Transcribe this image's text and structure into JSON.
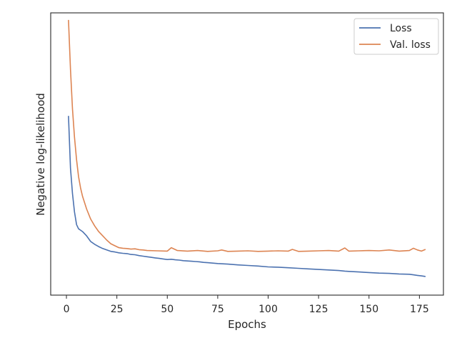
{
  "chart_data": {
    "type": "line",
    "xlabel": "Epochs",
    "ylabel": "Negative log-likelihood",
    "xlim": [
      -7.8,
      186.9
    ],
    "ylim": [
      0.0,
      1.0
    ],
    "y_ticks_shown": false,
    "grid": false,
    "legend_position": "top-right",
    "x_ticks": [
      0,
      25,
      50,
      75,
      100,
      125,
      150,
      175
    ],
    "series": [
      {
        "name": "Loss",
        "color": "#4c72b0",
        "x": [
          1,
          2,
          3,
          4,
          5,
          6,
          7,
          8,
          10,
          12,
          14,
          16,
          18,
          20,
          22,
          24,
          26,
          28,
          30,
          32,
          34,
          36,
          38,
          40,
          42,
          44,
          46,
          48,
          50,
          52,
          54,
          56,
          58,
          60,
          62,
          64,
          66,
          68,
          70,
          75,
          80,
          85,
          90,
          95,
          100,
          105,
          110,
          115,
          120,
          125,
          130,
          135,
          138,
          140,
          145,
          150,
          155,
          160,
          165,
          170,
          172,
          174,
          176,
          178
        ],
        "values": [
          0.635,
          0.45,
          0.36,
          0.295,
          0.25,
          0.235,
          0.23,
          0.225,
          0.21,
          0.19,
          0.18,
          0.172,
          0.165,
          0.16,
          0.155,
          0.153,
          0.15,
          0.148,
          0.147,
          0.144,
          0.143,
          0.14,
          0.138,
          0.136,
          0.134,
          0.132,
          0.13,
          0.128,
          0.126,
          0.127,
          0.125,
          0.124,
          0.122,
          0.121,
          0.12,
          0.119,
          0.118,
          0.116,
          0.115,
          0.112,
          0.11,
          0.107,
          0.105,
          0.103,
          0.1,
          0.099,
          0.097,
          0.095,
          0.093,
          0.091,
          0.089,
          0.087,
          0.085,
          0.084,
          0.082,
          0.08,
          0.078,
          0.077,
          0.075,
          0.074,
          0.072,
          0.07,
          0.068,
          0.066
        ]
      },
      {
        "name": "Val. loss",
        "color": "#dd8452",
        "x": [
          1,
          2,
          3,
          4,
          5,
          6,
          7,
          8,
          10,
          12,
          14,
          16,
          18,
          20,
          22,
          24,
          26,
          28,
          30,
          32,
          34,
          36,
          38,
          40,
          45,
          50,
          52,
          55,
          60,
          65,
          70,
          75,
          77,
          80,
          85,
          90,
          95,
          100,
          105,
          110,
          112,
          115,
          120,
          125,
          130,
          135,
          138,
          140,
          145,
          150,
          155,
          160,
          165,
          170,
          172,
          174,
          176,
          178
        ],
        "values": [
          0.975,
          0.8,
          0.66,
          0.56,
          0.48,
          0.42,
          0.38,
          0.35,
          0.305,
          0.27,
          0.245,
          0.225,
          0.21,
          0.195,
          0.182,
          0.175,
          0.168,
          0.166,
          0.165,
          0.163,
          0.164,
          0.161,
          0.16,
          0.158,
          0.157,
          0.156,
          0.168,
          0.158,
          0.156,
          0.158,
          0.155,
          0.157,
          0.16,
          0.155,
          0.156,
          0.157,
          0.155,
          0.156,
          0.157,
          0.156,
          0.162,
          0.155,
          0.156,
          0.157,
          0.158,
          0.156,
          0.167,
          0.156,
          0.157,
          0.158,
          0.157,
          0.16,
          0.156,
          0.158,
          0.166,
          0.16,
          0.156,
          0.162
        ]
      }
    ]
  }
}
